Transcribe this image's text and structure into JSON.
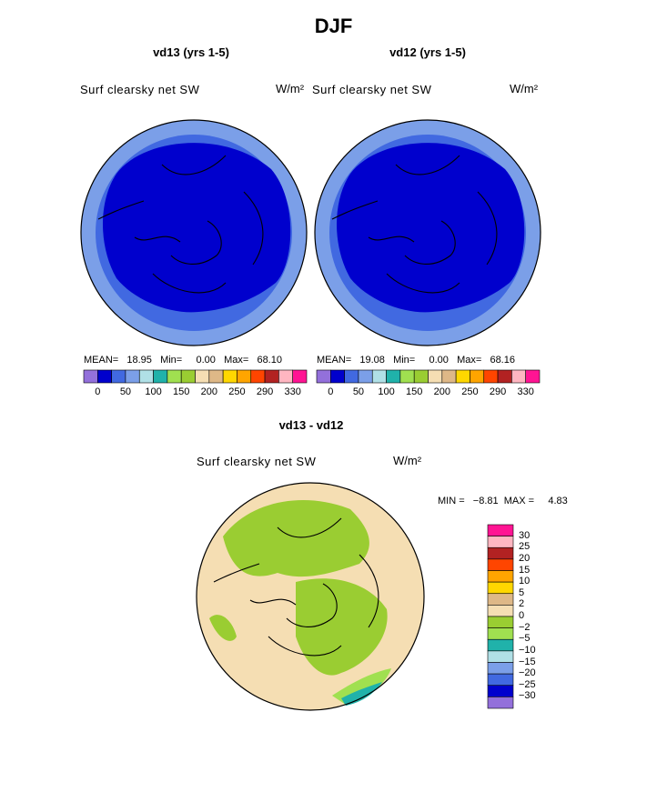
{
  "title": "DJF",
  "panels": [
    {
      "subtitle": "vd13 (yrs 1-5)",
      "field": "Surf clearsky net SW",
      "units": "W/m²",
      "stats": "MEAN=   18.95   Min=     0.00   Max=   68.10"
    },
    {
      "subtitle": "vd12 (yrs 1-5)",
      "field": "Surf clearsky net SW",
      "units": "W/m²",
      "stats": "MEAN=   19.08   Min=     0.00   Max=   68.16"
    }
  ],
  "diff": {
    "subtitle": "vd13 - vd12",
    "field": "Surf clearsky net SW",
    "units": "W/m²",
    "minmax": "MIN =   −8.81  MAX =     4.83"
  },
  "colorbar_top": {
    "colors": [
      "#9370db",
      "#0000cd",
      "#4169e1",
      "#7b9fe8",
      "#b0e0e6",
      "#20b2aa",
      "#a0e050",
      "#9acd32",
      "#f5deb3",
      "#deb887",
      "#ffd700",
      "#ffa500",
      "#ff4500",
      "#b22222",
      "#ffb6c1",
      "#ff1493"
    ],
    "labels": [
      "0",
      "50",
      "100",
      "150",
      "200",
      "250",
      "290",
      "330"
    ]
  },
  "colorbar_diff": {
    "colors": [
      "#ff1493",
      "#ffb6c1",
      "#b22222",
      "#ff4500",
      "#ffa500",
      "#ffd700",
      "#deb887",
      "#f5deb3",
      "#9acd32",
      "#a0e050",
      "#20b2aa",
      "#b0e0e6",
      "#7b9fe8",
      "#4169e1",
      "#0000cd",
      "#9370db"
    ],
    "labels": [
      "30",
      "25",
      "20",
      "15",
      "10",
      "5",
      "2",
      "0",
      "−2",
      "−5",
      "−10",
      "−15",
      "−20",
      "−25",
      "−30"
    ]
  }
}
